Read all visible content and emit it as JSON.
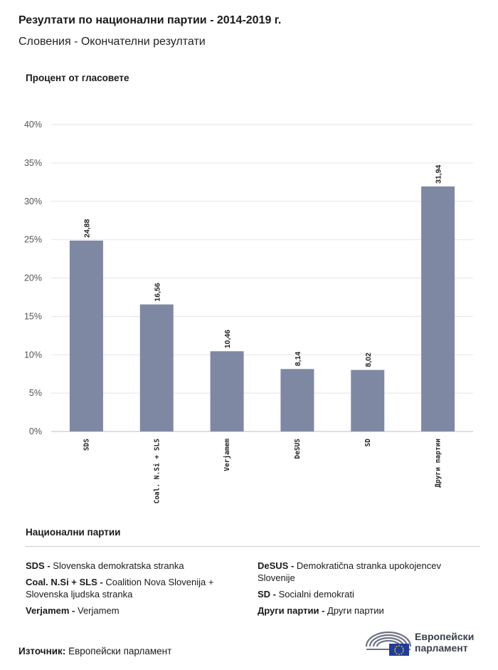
{
  "header": {
    "title": "Резултати по национални партии - 2014-2019 г.",
    "subtitle": "Словения - Окончателни резултати"
  },
  "chart_data": {
    "type": "bar",
    "ylabel": "Процент от гласовете",
    "categories": [
      "SDS",
      "Coal. N.Si + SLS",
      "Verjamem",
      "DeSUS",
      "SD",
      "Други партии"
    ],
    "values": [
      24.88,
      16.56,
      10.46,
      8.14,
      8.02,
      31.94
    ],
    "value_labels": [
      "24,88",
      "16,56",
      "10,46",
      "8,14",
      "8,02",
      "31,94"
    ],
    "ylim": [
      0,
      40
    ],
    "yticks": [
      0,
      5,
      10,
      15,
      20,
      25,
      30,
      35,
      40
    ],
    "ytick_labels": [
      "0%",
      "5%",
      "10%",
      "15%",
      "20%",
      "25%",
      "30%",
      "35%",
      "40%"
    ],
    "grid": true,
    "bar_color": "#7f88a3"
  },
  "legend": {
    "title": "Национални партии",
    "left": [
      {
        "abbr": "SDS -",
        "name": "Slovenska demokratska stranka"
      },
      {
        "abbr": "Coal. N.Si + SLS -",
        "name": "Coalition Nova Slovenija + Slovenska ljudska stranka"
      },
      {
        "abbr": "Verjamem -",
        "name": "Verjamem"
      }
    ],
    "right": [
      {
        "abbr": "DeSUS -",
        "name": "Demokratična stranka upokojencev Slovenije"
      },
      {
        "abbr": "SD -",
        "name": "Socialni demokrati"
      },
      {
        "abbr": "Други партии -",
        "name": "Други партии"
      }
    ]
  },
  "footer": {
    "source_label": "Източник:",
    "source_value": "Европейски парламент",
    "logo_line1": "Европейски",
    "logo_line2": "парламент"
  }
}
